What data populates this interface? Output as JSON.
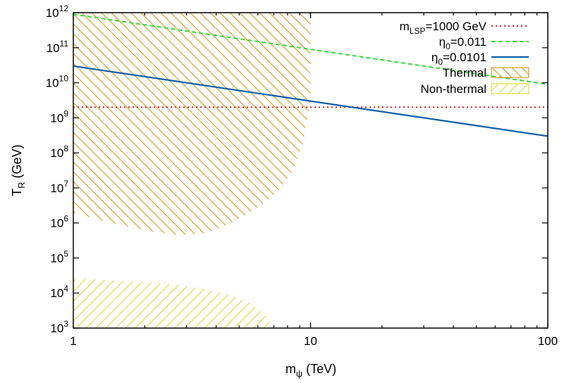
{
  "chart_data": {
    "type": "line",
    "xlabel": {
      "base": "m",
      "sub": "ψ",
      "rest": " (TeV)"
    },
    "ylabel": {
      "base": "T",
      "sub": "R",
      "rest": " (GeV)"
    },
    "xscale": "log",
    "yscale": "log",
    "xlim": [
      1,
      100
    ],
    "ylim": [
      1000,
      1000000000000
    ],
    "x_ticks": [
      "1",
      "10",
      "100"
    ],
    "y_tick_exponents": [
      "3",
      "4",
      "5",
      "6",
      "7",
      "8",
      "9",
      "10",
      "11",
      "12"
    ],
    "y_tick_base": "10",
    "grid": false,
    "legend_placement": "top-right",
    "series": [
      {
        "name": {
          "base": "m",
          "sub": "LSP",
          "rest": "=1000 GeV"
        },
        "style": "dotted",
        "color": "#e41a1c",
        "x": [
          1,
          100
        ],
        "y": [
          2000000000,
          2000000000
        ]
      },
      {
        "name": {
          "base": "η",
          "sub": "0",
          "rest": "=0.011"
        },
        "style": "dashed",
        "color": "#33dd33",
        "x": [
          1,
          100
        ],
        "y": [
          900000000000,
          9000000000
        ]
      },
      {
        "name": {
          "base": "η",
          "sub": "0",
          "rest": "=0.0101"
        },
        "style": "solid",
        "color": "#0e5ea8",
        "x": [
          1,
          100
        ],
        "y": [
          30000000000,
          300000000
        ]
      }
    ],
    "regions": [
      {
        "name": "Thermal",
        "pattern": "hatch-down",
        "color": "#d9a030",
        "boundary_x": [
          1,
          1.3,
          1.7,
          2.2,
          2.8,
          3.5,
          4.3,
          5.2,
          6.2,
          7.3,
          8.4,
          9.3,
          10,
          10,
          1
        ],
        "boundary_y": [
          2000000,
          1200000,
          800000,
          550000,
          450000,
          500000,
          800000,
          1500000,
          3200000,
          8000000,
          30000000,
          200000000,
          3000000000,
          1000000000000,
          1000000000000
        ]
      },
      {
        "name": "Non-thermal",
        "pattern": "hatch-up",
        "color": "#e6d84a",
        "boundary_x": [
          1,
          1.2,
          1.6,
          2.1,
          2.8,
          3.6,
          4.6,
          5.6,
          6.4,
          7,
          1
        ],
        "boundary_y": [
          25000,
          25000,
          22000,
          20000,
          17000,
          13000,
          9000,
          5000,
          2500,
          1000,
          1000
        ]
      }
    ]
  }
}
